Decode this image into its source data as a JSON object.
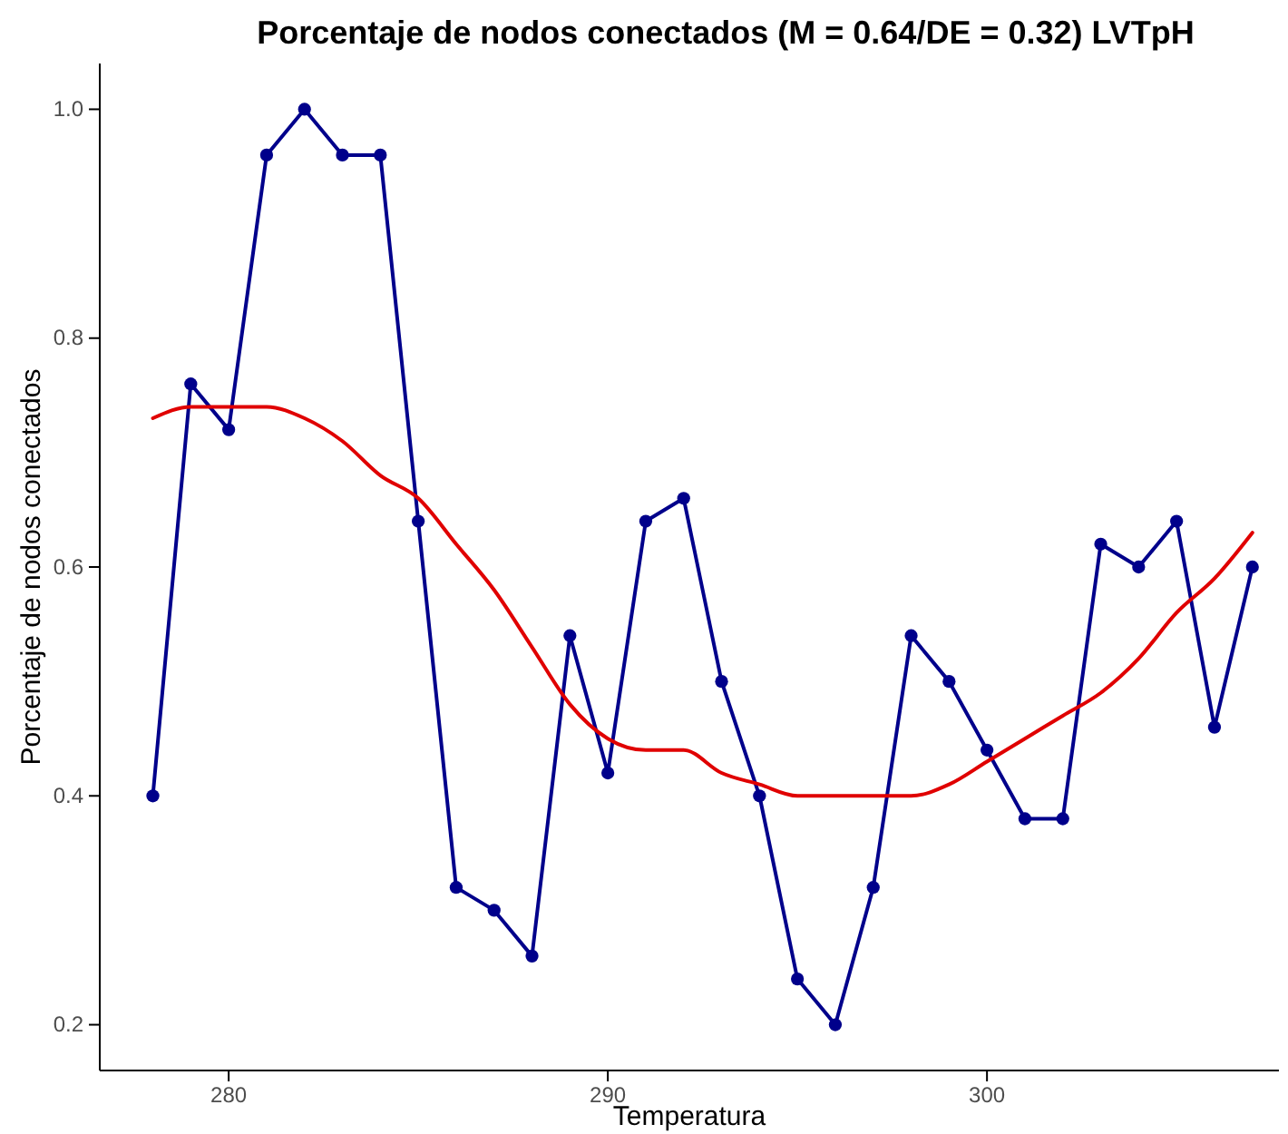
{
  "chart_data": {
    "type": "line",
    "title": "Porcentaje de nodos conectados (M = 0.64/DE = 0.32) LVTpH",
    "xlabel": "Temperatura",
    "ylabel": "Porcentaje de nodos conectados",
    "x": [
      278,
      279,
      280,
      281,
      282,
      283,
      284,
      285,
      286,
      287,
      288,
      289,
      290,
      291,
      292,
      293,
      294,
      295,
      296,
      297,
      298,
      299,
      300,
      301,
      302,
      303,
      304,
      305,
      306,
      307
    ],
    "series": [
      {
        "color": "#00008b",
        "marker": "circle",
        "values": [
          0.4,
          0.76,
          0.72,
          0.96,
          1.0,
          0.96,
          0.96,
          0.64,
          0.32,
          0.3,
          0.26,
          0.54,
          0.42,
          0.64,
          0.66,
          0.5,
          0.4,
          0.24,
          0.2,
          0.32,
          0.54,
          0.5,
          0.44,
          0.38,
          0.38,
          0.62,
          0.6,
          0.64,
          0.46,
          0.6
        ]
      },
      {
        "color": "#e00000",
        "marker": "none",
        "values": [
          0.73,
          0.74,
          0.74,
          0.74,
          0.73,
          0.71,
          0.68,
          0.66,
          0.62,
          0.58,
          0.53,
          0.48,
          0.45,
          0.44,
          0.44,
          0.42,
          0.41,
          0.4,
          0.4,
          0.4,
          0.4,
          0.41,
          0.43,
          0.45,
          0.47,
          0.49,
          0.52,
          0.56,
          0.59,
          0.63
        ]
      }
    ],
    "xlim": [
      276.6,
      307.7
    ],
    "xticks": [
      280,
      290,
      300
    ],
    "ylim": [
      0.16,
      1.04
    ],
    "yticks": [
      {
        "value": 0.2,
        "label": "0.2"
      },
      {
        "value": 0.4,
        "label": "0.4"
      },
      {
        "value": 0.6,
        "label": "0.6"
      },
      {
        "value": 0.8,
        "label": "0.8"
      },
      {
        "value": 1.0,
        "label": "1.0"
      }
    ],
    "grid": false
  }
}
